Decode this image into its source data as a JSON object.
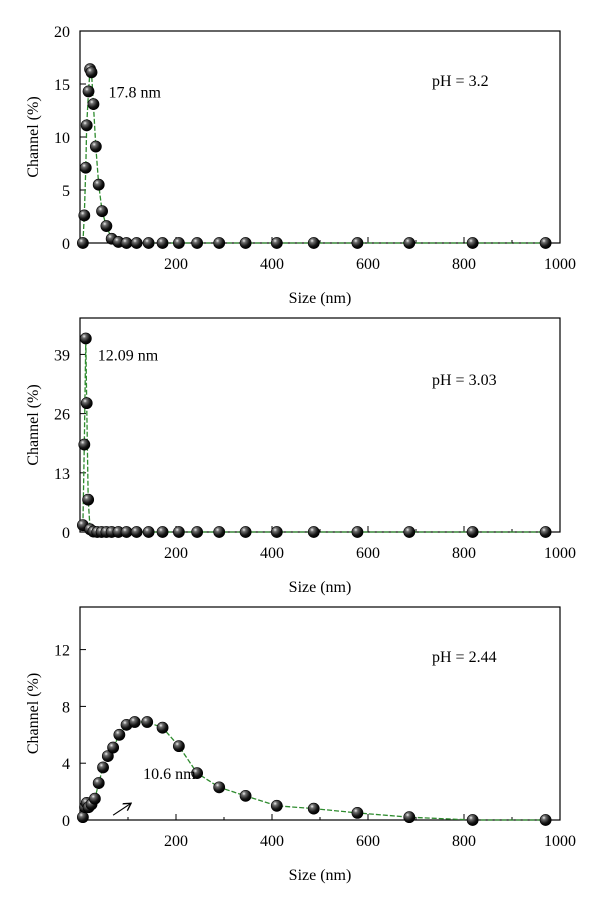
{
  "colors": {
    "line": "#2e8b2e",
    "marker": "#111111",
    "axis": "#000000"
  },
  "chart_data": [
    {
      "type": "line",
      "xlabel": "Size (nm)",
      "ylabel": "Channel (%)",
      "xlim": [
        0,
        1000
      ],
      "ylim": [
        0,
        20
      ],
      "xticks": [
        200,
        400,
        600,
        800,
        1000
      ],
      "xtick_labels": [
        "200",
        "400",
        "600",
        "800",
        "1000"
      ],
      "yticks": [
        0,
        5,
        10,
        15,
        20
      ],
      "ytick_labels": [
        "0",
        "5",
        "10",
        "15",
        "20"
      ],
      "annotation": "17.8 nm",
      "condition_label": "pH = 3.2",
      "series": [
        {
          "x": [
            6,
            9,
            12,
            14,
            17.8,
            21,
            24,
            28,
            33,
            39,
            46,
            55,
            66,
            80,
            97,
            118,
            143,
            172,
            206,
            244,
            290,
            345,
            410,
            487,
            578,
            686,
            818,
            970
          ],
          "values": [
            0,
            2.6,
            7.1,
            11.1,
            14.3,
            16.4,
            16.1,
            13.1,
            9.1,
            5.5,
            3.0,
            1.6,
            0.4,
            0.1,
            0,
            0,
            0,
            0,
            0,
            0,
            0,
            0,
            0,
            0,
            0,
            0,
            0,
            0
          ]
        }
      ]
    },
    {
      "type": "line",
      "xlabel": "Size (nm)",
      "ylabel": "Channel (%)",
      "xlim": [
        0,
        1000
      ],
      "ylim": [
        0,
        47
      ],
      "xticks": [
        200,
        400,
        600,
        800,
        1000
      ],
      "xtick_labels": [
        "200",
        "400",
        "600",
        "800",
        "1000"
      ],
      "yticks": [
        0,
        13,
        26,
        39
      ],
      "ytick_labels": [
        "0",
        "13",
        "26",
        "39"
      ],
      "annotation": "12.09 nm",
      "condition_label": "pH = 3.03",
      "series": [
        {
          "x": [
            6,
            9,
            12.09,
            14,
            17,
            21,
            28,
            36,
            45,
            55,
            66,
            80,
            97,
            118,
            143,
            172,
            206,
            244,
            290,
            345,
            410,
            487,
            578,
            686,
            818,
            970
          ],
          "values": [
            1.5,
            19.2,
            42.5,
            28.3,
            7.1,
            0.6,
            0.1,
            0,
            0,
            0,
            0,
            0,
            0,
            0,
            0,
            0,
            0,
            0,
            0,
            0,
            0,
            0,
            0,
            0,
            0,
            0
          ]
        }
      ]
    },
    {
      "type": "line",
      "xlabel": "Size (nm)",
      "ylabel": "Channel (%)",
      "xlim": [
        0,
        1000
      ],
      "ylim": [
        0,
        15
      ],
      "xticks": [
        200,
        400,
        600,
        800,
        1000
      ],
      "xtick_labels": [
        "200",
        "400",
        "600",
        "800",
        "1000"
      ],
      "yticks": [
        0,
        4,
        8,
        12
      ],
      "ytick_labels": [
        "0",
        "4",
        "8",
        "12"
      ],
      "annotation": "10.6 nm",
      "condition_label": "pH = 2.44",
      "series": [
        {
          "x": [
            6,
            10.6,
            14,
            18,
            24,
            31,
            39,
            48,
            58,
            69,
            82,
            97,
            114,
            140,
            172,
            206,
            244,
            290,
            345,
            410,
            487,
            578,
            686,
            818,
            970
          ],
          "values": [
            0.2,
            0.9,
            1.2,
            0.9,
            1.1,
            1.5,
            2.6,
            3.7,
            4.5,
            5.1,
            6.0,
            6.7,
            6.9,
            6.9,
            6.5,
            5.2,
            3.3,
            2.3,
            1.7,
            1.0,
            0.8,
            0.5,
            0.2,
            0,
            0
          ]
        }
      ]
    }
  ]
}
